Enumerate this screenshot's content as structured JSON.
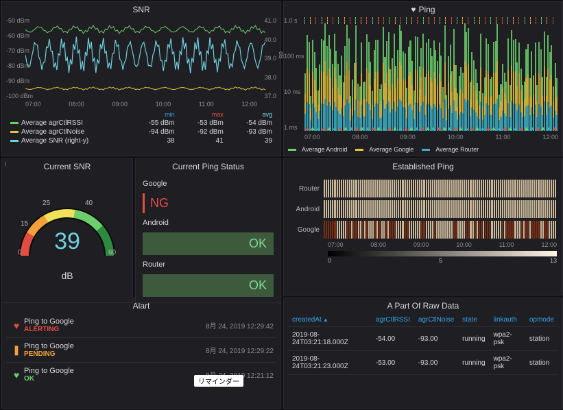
{
  "snr": {
    "title": "SNR",
    "y_left": [
      "-50 dBm",
      "-60 dBm",
      "-70 dBm",
      "-80 dBm",
      "-90 dBm",
      "-100 dBm"
    ],
    "y_right": [
      "41.0",
      "40.0",
      "39.0",
      "38.0",
      "37.0"
    ],
    "y_right_label": "dB",
    "x": [
      "07:00",
      "08:00",
      "09:00",
      "10:00",
      "11:00",
      "12:00"
    ],
    "cols": {
      "min": "min",
      "max": "max",
      "avg": "avg"
    },
    "rows": [
      {
        "name": "Average agrCtlRSSI",
        "color": "#6ccf6c",
        "min": "-55 dBm",
        "max": "-53 dBm",
        "avg": "-54 dBm"
      },
      {
        "name": "Average agrCtlNoise",
        "color": "#e5c43c",
        "min": "-94 dBm",
        "max": "-92 dBm",
        "avg": "-93 dBm"
      },
      {
        "name": "Average SNR (right-y)",
        "color": "#6ed0e0",
        "min": "38",
        "max": "41",
        "avg": "39"
      }
    ],
    "series_colors": {
      "rssi": "#6ccf6c",
      "noise": "#e5c43c",
      "snr": "#6ed0e0"
    },
    "background": "#1f1f23",
    "grid": "#2c2c32"
  },
  "ping": {
    "title": "Ping",
    "y": [
      "1.0 s",
      "100 ms",
      "10 ms",
      "1 ms"
    ],
    "x": [
      "07:00",
      "08:00",
      "09:00",
      "10:00",
      "11:00",
      "12:00"
    ],
    "legend": [
      {
        "name": "Average Android",
        "color": "#6ccf6c"
      },
      {
        "name": "Average Google",
        "color": "#e5c43c"
      },
      {
        "name": "Average Router",
        "color": "#3bb0c4"
      }
    ],
    "dash_colors": [
      "#6ccf6c",
      "#f2a13a",
      "#e24d42"
    ],
    "triangle_colors": [
      "#e24d42",
      "#6ccf6c",
      "#3bb0c4"
    ]
  },
  "gauge": {
    "title": "Current SNR",
    "value": "39",
    "unit": "dB",
    "ticks": [
      "0",
      "15",
      "25",
      "40",
      "60"
    ],
    "arc_colors": [
      "#e24d42",
      "#f2a13a",
      "#f0e05a",
      "#6ccf6c",
      "#2b8a3e"
    ],
    "value_color": "#6ed0e0"
  },
  "cps": {
    "title": "Current Ping Status",
    "items": [
      {
        "label": "Google",
        "status": "NG",
        "kind": "ng"
      },
      {
        "label": "Android",
        "status": "OK",
        "kind": "ok"
      },
      {
        "label": "Router",
        "status": "OK",
        "kind": "ok"
      }
    ]
  },
  "est": {
    "title": "Established Ping",
    "rows": [
      "Router",
      "Android",
      "Google"
    ],
    "x": [
      "07:00",
      "08:00",
      "09:00",
      "10:00",
      "11:00",
      "12:00"
    ],
    "gradient_ticks": [
      "0",
      "5",
      "13"
    ],
    "colors": {
      "Router": "#c9b79a",
      "Android": "#c9b79a",
      "Google_on": "#c9b79a",
      "Google_off": "#7a2d13"
    }
  },
  "alart": {
    "title": "Alart",
    "items": [
      {
        "icon": "heart-broken-icon",
        "icon_color": "#e24d42",
        "name": "Ping to Google",
        "state": "ALERTING",
        "state_cls": "st-alerting",
        "ts": "8月 24, 2019 12:29:42"
      },
      {
        "icon": "warning-icon",
        "icon_color": "#f2a13a",
        "name": "Ping to Google",
        "state": "PENDING",
        "state_cls": "st-pending",
        "ts": "8月 24, 2019 12:29:22"
      },
      {
        "icon": "heart-icon",
        "icon_color": "#6ccf6c",
        "name": "Ping to Google",
        "state": "OK",
        "state_cls": "st-ok",
        "ts": "8月 24, 2019 12:21:12"
      }
    ],
    "tooltip": "リマインダー"
  },
  "raw": {
    "title": "A Part Of Raw Data",
    "columns": [
      "createdAt",
      "agrCtlRSSI",
      "agrCtlNoise",
      "state",
      "linkauth",
      "opmode"
    ],
    "sort_col": "createdAt",
    "rows": [
      [
        "2019-08-24T03:21:18.000Z",
        "-54.00",
        "-93.00",
        "running",
        "wpa2-psk",
        "station"
      ],
      [
        "2019-08-24T03:21:23.000Z",
        "-53.00",
        "-93.00",
        "running",
        "wpa2-psk",
        "station"
      ]
    ]
  }
}
